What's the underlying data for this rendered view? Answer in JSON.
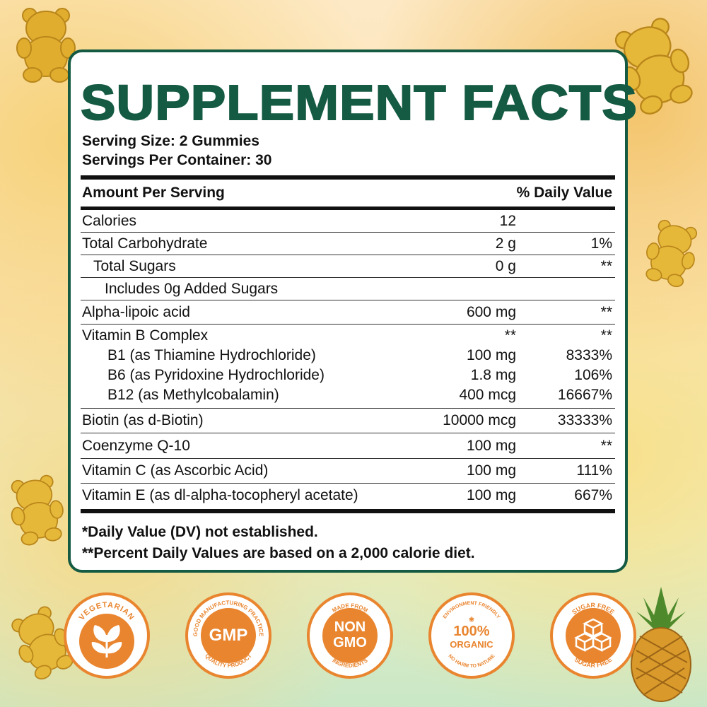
{
  "panel": {
    "title": "SUPPLEMENT FACTS",
    "serving_size": "Serving Size: 2 Gummies",
    "servings_per_container": "Servings Per Container: 30",
    "header_left": "Amount Per Serving",
    "header_right": "% Daily Value",
    "rows": [
      {
        "label": "Calories",
        "amount": "12",
        "dv": ""
      },
      {
        "label": "Total Carbohydrate",
        "amount": "2 g",
        "dv": "1%"
      },
      {
        "label": "Total Sugars",
        "amount": "0 g",
        "dv": "**"
      },
      {
        "label": "Includes 0g Added Sugars",
        "amount": "",
        "dv": ""
      },
      {
        "label": "Alpha-lipoic acid",
        "amount": "600 mg",
        "dv": "**"
      },
      {
        "label": "Vitamin B Complex",
        "amount": "**",
        "dv": "**"
      },
      {
        "label": "B1 (as Thiamine Hydrochloride)",
        "amount": "100 mg",
        "dv": "8333%"
      },
      {
        "label": "B6 (as Pyridoxine Hydrochloride)",
        "amount": "1.8 mg",
        "dv": "106%"
      },
      {
        "label": "B12 (as Methylcobalamin)",
        "amount": "400 mcg",
        "dv": "16667%"
      },
      {
        "label": "Biotin (as d-Biotin)",
        "amount": "10000 mcg",
        "dv": "33333%"
      },
      {
        "label": "Coenzyme Q-10",
        "amount": "100 mg",
        "dv": "**"
      },
      {
        "label": "Vitamin C (as Ascorbic Acid)",
        "amount": "100 mg",
        "dv": "111%"
      },
      {
        "label": "Vitamin E (as dl-alpha-tocopheryl acetate)",
        "amount": "100 mg",
        "dv": "667%"
      }
    ],
    "footnote1": "*Daily Value (DV) not established.",
    "footnote2": "**Percent Daily Values are based on a 2,000 calorie diet."
  },
  "badges": {
    "vegetarian": {
      "ring": "VEGETARIAN",
      "icon": "leaf-icon"
    },
    "gmp": {
      "ring_top": "GOOD MANUFACTURING PRACTICE",
      "center": "GMP",
      "ring_bottom": "QUALITY PRODUCT"
    },
    "non_gmo": {
      "ring_top": "MADE FROM",
      "center_1": "NON",
      "center_2": "GMO",
      "ring_bottom": "INGREDIENTS"
    },
    "organic": {
      "ring_top": "ENVIRONMENT FRIENDLY",
      "center_1": "100%",
      "center_2": "ORGANIC",
      "ring_bottom": "NO HARM TO NATURE"
    },
    "sugar_free": {
      "ring_top": "SUGAR FREE",
      "ring_bottom": "SUGAR FREE",
      "icon": "sugar-cubes-icon"
    }
  },
  "colors": {
    "brand_green": "#155a42",
    "badge_orange": "#e9852f",
    "gummy_gold": "#e3b23c"
  }
}
